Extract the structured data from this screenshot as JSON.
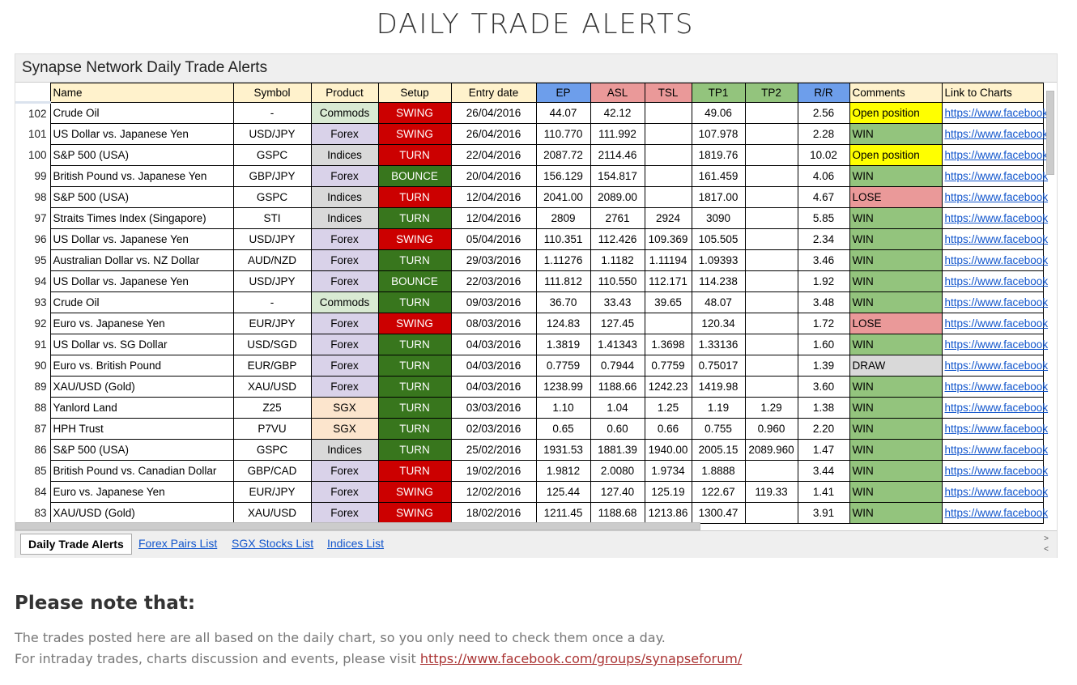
{
  "page": {
    "title": "DAILY TRADE ALERTS"
  },
  "sheet": {
    "title": "Synapse Network Daily Trade Alerts",
    "headers": {
      "name": "Name",
      "symbol": "Symbol",
      "product": "Product",
      "setup": "Setup",
      "entry_date": "Entry date",
      "ep": "EP",
      "asl": "ASL",
      "tsl": "TSL",
      "tp1": "TP1",
      "tp2": "TP2",
      "rr": "R/R",
      "comments": "Comments",
      "link": "Link to Charts"
    },
    "colors": {
      "header": "#fff2cc",
      "ep": "#6d9eeb",
      "asl": "#ea9999",
      "tsl": "#ea9999",
      "tp1": "#93c47d",
      "tp2": "#93c47d",
      "rr": "#6d9eeb"
    },
    "rows": [
      {
        "n": "102",
        "name": "Crude Oil",
        "symbol": "-",
        "product": "Commods",
        "setup": "SWING",
        "date": "26/04/2016",
        "ep": "44.07",
        "asl": "42.12",
        "tsl": "",
        "tp1": "49.06",
        "tp2": "",
        "rr": "2.56",
        "comment": "Open position",
        "link": "https://www.facebook"
      },
      {
        "n": "101",
        "name": "US Dollar vs. Japanese Yen",
        "symbol": "USD/JPY",
        "product": "Forex",
        "setup": "SWING",
        "date": "26/04/2016",
        "ep": "110.770",
        "asl": "111.992",
        "tsl": "",
        "tp1": "107.978",
        "tp2": "",
        "rr": "2.28",
        "comment": "WIN",
        "link": "https://www.facebook"
      },
      {
        "n": "100",
        "name": "S&P 500 (USA)",
        "symbol": "GSPC",
        "product": "Indices",
        "setup": "TURN",
        "date": "22/04/2016",
        "ep": "2087.72",
        "asl": "2114.46",
        "tsl": "",
        "tp1": "1819.76",
        "tp2": "",
        "rr": "10.02",
        "comment": "Open position",
        "link": "https://www.facebook"
      },
      {
        "n": "99",
        "name": "British Pound vs. Japanese Yen",
        "symbol": "GBP/JPY",
        "product": "Forex",
        "setup": "BOUNCE",
        "date": "20/04/2016",
        "ep": "156.129",
        "asl": "154.817",
        "tsl": "",
        "tp1": "161.459",
        "tp2": "",
        "rr": "4.06",
        "comment": "WIN",
        "link": "https://www.facebook"
      },
      {
        "n": "98",
        "name": "S&P 500 (USA)",
        "symbol": "GSPC",
        "product": "Indices",
        "setup": "TURN",
        "date": "12/04/2016",
        "ep": "2041.00",
        "asl": "2089.00",
        "tsl": "",
        "tp1": "1817.00",
        "tp2": "",
        "rr": "4.67",
        "comment": "LOSE",
        "link": "https://www.facebook"
      },
      {
        "n": "97",
        "name": "Straits Times Index (Singapore)",
        "symbol": "STI",
        "product": "Indices",
        "setup": "TURN",
        "date": "12/04/2016",
        "ep": "2809",
        "asl": "2761",
        "tsl": "2924",
        "tp1": "3090",
        "tp2": "",
        "rr": "5.85",
        "comment": "WIN",
        "link": "https://www.facebook"
      },
      {
        "n": "96",
        "name": "US Dollar vs. Japanese Yen",
        "symbol": "USD/JPY",
        "product": "Forex",
        "setup": "SWING",
        "date": "05/04/2016",
        "ep": "110.351",
        "asl": "112.426",
        "tsl": "109.369",
        "tp1": "105.505",
        "tp2": "",
        "rr": "2.34",
        "comment": "WIN",
        "link": "https://www.facebook"
      },
      {
        "n": "95",
        "name": "Australian Dollar vs. NZ Dollar",
        "symbol": "AUD/NZD",
        "product": "Forex",
        "setup": "TURN",
        "date": "29/03/2016",
        "ep": "1.11276",
        "asl": "1.1182",
        "tsl": "1.11194",
        "tp1": "1.09393",
        "tp2": "",
        "rr": "3.46",
        "comment": "WIN",
        "link": "https://www.facebook"
      },
      {
        "n": "94",
        "name": "US Dollar vs. Japanese Yen",
        "symbol": "USD/JPY",
        "product": "Forex",
        "setup": "BOUNCE",
        "date": "22/03/2016",
        "ep": "111.812",
        "asl": "110.550",
        "tsl": "112.171",
        "tp1": "114.238",
        "tp2": "",
        "rr": "1.92",
        "comment": "WIN",
        "link": "https://www.facebook"
      },
      {
        "n": "93",
        "name": "Crude Oil",
        "symbol": "-",
        "product": "Commods",
        "setup": "TURN",
        "date": "09/03/2016",
        "ep": "36.70",
        "asl": "33.43",
        "tsl": "39.65",
        "tp1": "48.07",
        "tp2": "",
        "rr": "3.48",
        "comment": "WIN",
        "link": "https://www.facebook"
      },
      {
        "n": "92",
        "name": "Euro vs. Japanese Yen",
        "symbol": "EUR/JPY",
        "product": "Forex",
        "setup": "SWING",
        "date": "08/03/2016",
        "ep": "124.83",
        "asl": "127.45",
        "tsl": "",
        "tp1": "120.34",
        "tp2": "",
        "rr": "1.72",
        "comment": "LOSE",
        "link": "https://www.facebook"
      },
      {
        "n": "91",
        "name": "US Dollar vs. SG Dollar",
        "symbol": "USD/SGD",
        "product": "Forex",
        "setup": "TURN",
        "date": "04/03/2016",
        "ep": "1.3819",
        "asl": "1.41343",
        "tsl": "1.3698",
        "tp1": "1.33136",
        "tp2": "",
        "rr": "1.60",
        "comment": "WIN",
        "link": "https://www.facebook"
      },
      {
        "n": "90",
        "name": "Euro vs. British Pound",
        "symbol": "EUR/GBP",
        "product": "Forex",
        "setup": "TURN",
        "date": "04/03/2016",
        "ep": "0.7759",
        "asl": "0.7944",
        "tsl": "0.7759",
        "tp1": "0.75017",
        "tp2": "",
        "rr": "1.39",
        "comment": "DRAW",
        "link": "https://www.facebook"
      },
      {
        "n": "89",
        "name": "XAU/USD (Gold)",
        "symbol": "XAU/USD",
        "product": "Forex",
        "setup": "TURN",
        "date": "04/03/2016",
        "ep": "1238.99",
        "asl": "1188.66",
        "tsl": "1242.23",
        "tp1": "1419.98",
        "tp2": "",
        "rr": "3.60",
        "comment": "WIN",
        "link": "https://www.facebook"
      },
      {
        "n": "88",
        "name": "Yanlord Land",
        "symbol": "Z25",
        "product": "SGX",
        "setup": "TURN",
        "date": "03/03/2016",
        "ep": "1.10",
        "asl": "1.04",
        "tsl": "1.25",
        "tp1": "1.19",
        "tp2": "1.29",
        "rr": "1.38",
        "comment": "WIN",
        "link": "https://www.facebook"
      },
      {
        "n": "87",
        "name": "HPH Trust",
        "symbol": "P7VU",
        "product": "SGX",
        "setup": "TURN",
        "date": "02/03/2016",
        "ep": "0.65",
        "asl": "0.60",
        "tsl": "0.66",
        "tp1": "0.755",
        "tp2": "0.960",
        "rr": "2.20",
        "comment": "WIN",
        "link": "https://www.facebook"
      },
      {
        "n": "86",
        "name": "S&P 500 (USA)",
        "symbol": "GSPC",
        "product": "Indices",
        "setup": "TURN",
        "date": "25/02/2016",
        "ep": "1931.53",
        "asl": "1881.39",
        "tsl": "1940.00",
        "tp1": "2005.15",
        "tp2": "2089.960",
        "rr": "1.47",
        "comment": "WIN",
        "link": "https://www.facebook"
      },
      {
        "n": "85",
        "name": "British Pound vs. Canadian Dollar",
        "symbol": "GBP/CAD",
        "product": "Forex",
        "setup": "TURN",
        "date": "19/02/2016",
        "ep": "1.9812",
        "asl": "2.0080",
        "tsl": "1.9734",
        "tp1": "1.8888",
        "tp2": "",
        "rr": "3.44",
        "comment": "WIN",
        "link": "https://www.facebook"
      },
      {
        "n": "84",
        "name": "Euro vs. Japanese Yen",
        "symbol": "EUR/JPY",
        "product": "Forex",
        "setup": "SWING",
        "date": "12/02/2016",
        "ep": "125.44",
        "asl": "127.40",
        "tsl": "125.19",
        "tp1": "122.67",
        "tp2": "119.33",
        "rr": "1.41",
        "comment": "WIN",
        "link": "https://www.facebook"
      },
      {
        "n": "83",
        "name": "XAU/USD (Gold)",
        "symbol": "XAU/USD",
        "product": "Forex",
        "setup": "SWING",
        "date": "18/02/2016",
        "ep": "1211.45",
        "asl": "1188.68",
        "tsl": "1213.86",
        "tp1": "1300.47",
        "tp2": "",
        "rr": "3.91",
        "comment": "WIN",
        "link": "https://www.facebook"
      }
    ],
    "tabs": [
      "Daily Trade Alerts",
      "Forex Pairs List",
      "SGX Stocks List",
      "Indices List"
    ]
  },
  "note": {
    "heading": "Please note that:",
    "line1": "The trades posted here are all based on the daily chart, so you only need to check them once a day.",
    "line2_prefix": "For intraday trades, charts discussion and events, please visit ",
    "line2_link": "https://www.facebook.com/groups/synapseforum/"
  }
}
